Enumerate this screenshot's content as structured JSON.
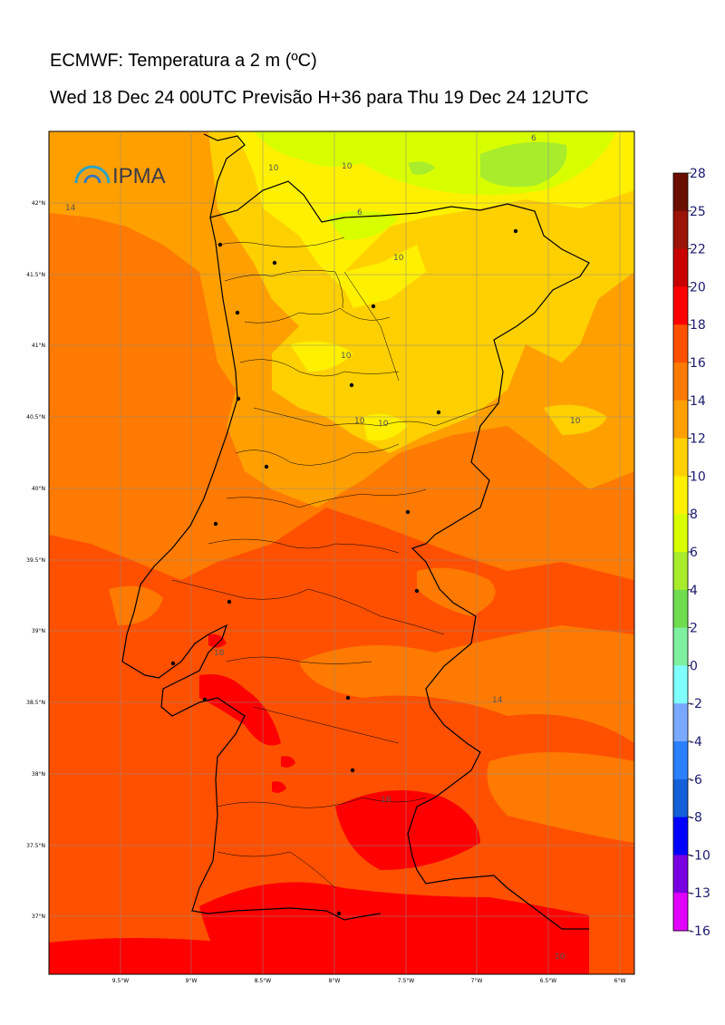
{
  "title": {
    "line1": "ECMWF: Temperatura a 2 m (ºC)",
    "line2": "Wed 18 Dec 24 00UTC Previsão H+36 para Thu 19 Dec 24 12UTC"
  },
  "logo": {
    "text": "IPMA"
  },
  "map": {
    "lat_labels": [
      "42°N",
      "41.5°N",
      "41°N",
      "40.5°N",
      "40°N",
      "39.5°N",
      "39°N",
      "38.5°N",
      "38°N",
      "37.5°N",
      "37°N"
    ],
    "lon_labels": [
      "9.5°W",
      "9°W",
      "8.5°W",
      "8°W",
      "7.5°W",
      "7°W",
      "6.5°W",
      "6°W"
    ],
    "contour_labels": [
      "14",
      "10",
      "10",
      "6",
      "6",
      "10",
      "10",
      "10",
      "10",
      "10",
      "18",
      "14",
      "18",
      "10"
    ]
  },
  "colorbar": {
    "labels": [
      "28",
      "25",
      "22",
      "20",
      "18",
      "16",
      "14",
      "12",
      "10",
      "8",
      "6",
      "4",
      "2",
      "0",
      "-2",
      "-4",
      "-6",
      "-8",
      "-10",
      "-13",
      "-16"
    ],
    "colors": [
      "#6b0f00",
      "#9a1408",
      "#c80000",
      "#ff0000",
      "#ff5000",
      "#ff7a00",
      "#ffa000",
      "#ffd000",
      "#fff000",
      "#d8ff00",
      "#a8ec2c",
      "#70dc50",
      "#7ef0a0",
      "#80ffff",
      "#7aa8ff",
      "#2a80ff",
      "#1460d8",
      "#0000ff",
      "#7a00e0",
      "#e000ff"
    ]
  }
}
